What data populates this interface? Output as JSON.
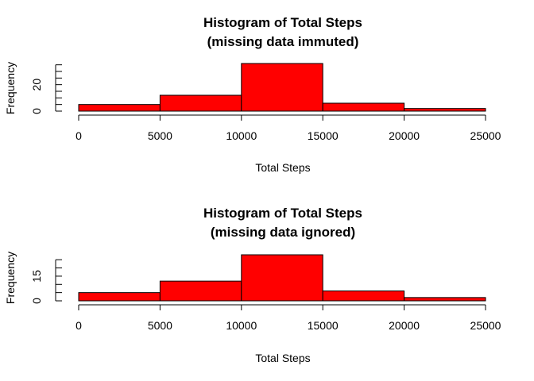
{
  "chart_data": [
    {
      "type": "bar",
      "title": "Histogram of Total Steps",
      "subtitle": "(missing data immuted)",
      "xlabel": "Total Steps",
      "ylabel": "Frequency",
      "bins": [
        [
          0,
          5000
        ],
        [
          5000,
          10000
        ],
        [
          10000,
          15000
        ],
        [
          15000,
          20000
        ],
        [
          20000,
          25000
        ]
      ],
      "values": [
        5,
        12,
        36,
        6,
        2
      ],
      "xlim": [
        0,
        25000
      ],
      "ylim": [
        0,
        36
      ],
      "xticks": [
        0,
        5000,
        10000,
        15000,
        20000,
        25000
      ],
      "xtick_labels": [
        "0",
        "5000",
        "10000",
        "15000",
        "20000",
        "25000"
      ],
      "yticks_minor": [
        0,
        5,
        10,
        15,
        20,
        25,
        30,
        35
      ],
      "ytick_labels": [
        {
          "value": 0,
          "label": "0"
        },
        {
          "value": 20,
          "label": "20"
        }
      ],
      "bar_color": "#ff0000",
      "grid": false
    },
    {
      "type": "bar",
      "title": "Histogram of Total Steps",
      "subtitle": "(missing data ignored)",
      "xlabel": "Total Steps",
      "ylabel": "Frequency",
      "bins": [
        [
          0,
          5000
        ],
        [
          5000,
          10000
        ],
        [
          10000,
          15000
        ],
        [
          15000,
          20000
        ],
        [
          20000,
          25000
        ]
      ],
      "values": [
        5,
        12,
        28,
        6,
        2
      ],
      "xlim": [
        0,
        25000
      ],
      "ylim": [
        0,
        28
      ],
      "xticks": [
        0,
        5000,
        10000,
        15000,
        20000,
        25000
      ],
      "xtick_labels": [
        "0",
        "5000",
        "10000",
        "15000",
        "20000",
        "25000"
      ],
      "yticks_minor": [
        0,
        5,
        10,
        15,
        20,
        25
      ],
      "ytick_labels": [
        {
          "value": 0,
          "label": "0"
        },
        {
          "value": 15,
          "label": "15"
        }
      ],
      "bar_color": "#ff0000",
      "grid": false
    }
  ]
}
